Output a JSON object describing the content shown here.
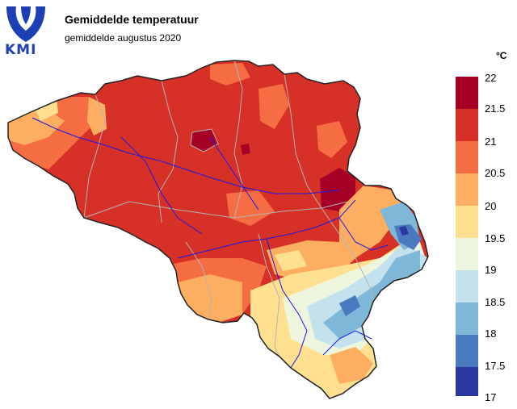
{
  "header": {
    "logo_text": "KMI",
    "title": "Gemiddelde temperatuur",
    "subtitle": "gemiddelde augustus 2020"
  },
  "legend": {
    "unit": "°C",
    "labels": [
      "22",
      "21.5",
      "21",
      "20.5",
      "20",
      "19.5",
      "19",
      "18.5",
      "18",
      "17.5",
      "17"
    ],
    "classes": [
      {
        "range": "21.5–22",
        "color": "#a50026"
      },
      {
        "range": "21–21.5",
        "color": "#d73027"
      },
      {
        "range": "20.5–21",
        "color": "#f46d43"
      },
      {
        "range": "20–20.5",
        "color": "#fdae61"
      },
      {
        "range": "19.5–20",
        "color": "#fee090"
      },
      {
        "range": "19–19.5",
        "color": "#edf6dc"
      },
      {
        "range": "18.5–19",
        "color": "#c3e2ee"
      },
      {
        "range": "18–18.5",
        "color": "#7fb7d8"
      },
      {
        "range": "17.5–18",
        "color": "#4a79c0"
      },
      {
        "range": "17–17.5",
        "color": "#2c37a0"
      }
    ]
  },
  "map_style": {
    "border_color": "#222222",
    "admin_border_color": "#b5b5b5",
    "river_color": "#1a1ae6"
  }
}
